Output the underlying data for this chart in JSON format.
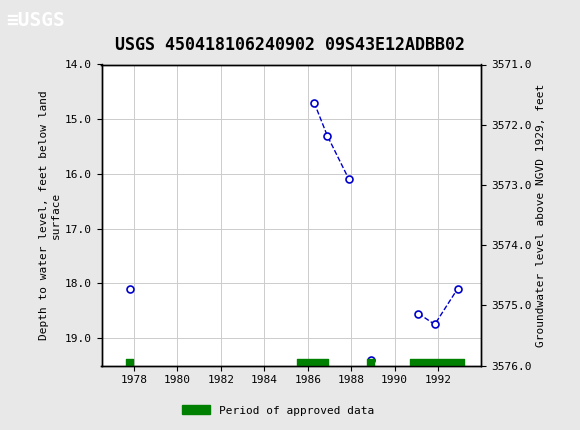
{
  "title": "USGS 450418106240902 09S43E12ADBB02",
  "ylabel_left": "Depth to water level, feet below land\nsurface",
  "ylabel_right": "Groundwater level above NGVD 1929, feet",
  "segments": [
    {
      "x": [
        1977.8
      ],
      "y": [
        18.1
      ]
    },
    {
      "x": [
        1986.3,
        1986.9,
        1987.9
      ],
      "y": [
        14.7,
        15.3,
        16.1
      ]
    },
    {
      "x": [
        1988.9
      ],
      "y": [
        19.4
      ]
    },
    {
      "x": [
        1991.1,
        1991.85,
        1992.9
      ],
      "y": [
        18.55,
        18.75,
        18.1
      ]
    }
  ],
  "ylim_left": [
    14.0,
    19.5
  ],
  "ylim_right": [
    3576.0,
    3571.0
  ],
  "xlim": [
    1976.5,
    1994.0
  ],
  "yticks_left": [
    14.0,
    15.0,
    16.0,
    17.0,
    18.0,
    19.0
  ],
  "yticks_right": [
    3576.0,
    3575.0,
    3574.0,
    3573.0,
    3572.0,
    3571.0
  ],
  "xticks": [
    1978,
    1980,
    1982,
    1984,
    1986,
    1988,
    1990,
    1992
  ],
  "line_color": "#0000cc",
  "marker_face": "#ffffff",
  "green_bar_color": "#008000",
  "green_bars": [
    {
      "x_start": 1977.65,
      "x_end": 1977.95
    },
    {
      "x_start": 1985.5,
      "x_end": 1986.95
    },
    {
      "x_start": 1988.75,
      "x_end": 1989.05
    },
    {
      "x_start": 1990.7,
      "x_end": 1993.2
    }
  ],
  "green_bar_y": 19.48,
  "green_bar_height": 0.1,
  "header_bg": "#1a6e3c",
  "header_text": "#ffffff",
  "background_color": "#e8e8e8",
  "plot_background": "#ffffff",
  "grid_color": "#cccccc",
  "title_fontsize": 12,
  "label_fontsize": 8,
  "tick_fontsize": 8,
  "font_family": "monospace"
}
